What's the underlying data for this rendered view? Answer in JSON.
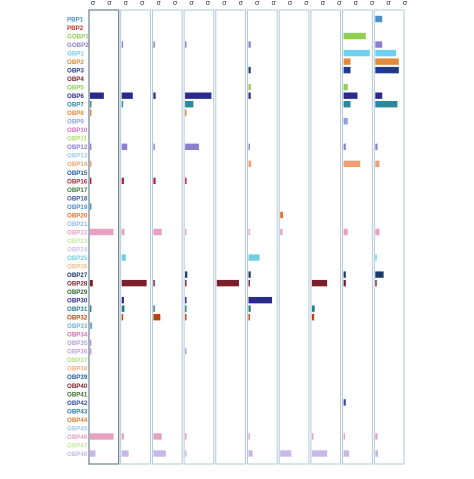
{
  "chart_data": {
    "type": "heatmap",
    "title": "",
    "xlabel": "",
    "ylabel": "",
    "columns": [
      "c1",
      "c2",
      "c3",
      "c4",
      "c5",
      "c6",
      "c7",
      "c8",
      "c9",
      "c10"
    ],
    "column_header_marks": [
      "σ",
      "σ",
      "σ",
      "σ",
      "σ",
      "σ",
      "σ",
      "σ",
      "σ",
      "σ",
      "σ",
      "σ",
      "σ",
      "σ",
      "σ",
      "σ",
      "σ",
      "σ",
      "σ",
      "σ"
    ],
    "genes": [
      "PBP1",
      "PBP2",
      "GOBP1",
      "GOBP2",
      "OBP1",
      "OBP2",
      "OBP3",
      "OBP4",
      "OBP5",
      "OBP6",
      "OBP7",
      "OBP8",
      "OBP9",
      "OBP10",
      "OBP11",
      "OBP12",
      "OBP13",
      "OBP14",
      "OBP15",
      "OBP16",
      "OBP17",
      "OBP18",
      "OBP19",
      "OBP20",
      "OBP21",
      "OBP22",
      "OBP23",
      "OBP24",
      "OBP25",
      "OBP26",
      "OBP27",
      "OBP28",
      "OBP29",
      "OBP30",
      "OBP31",
      "OBP32",
      "OBP33",
      "OBP34",
      "OBP35",
      "OBP36",
      "OBP37",
      "OBP38",
      "OBP39",
      "OBP40",
      "OBP41",
      "OBP42",
      "OBP43",
      "OBP44",
      "OBP45",
      "OBP46",
      "OBP47",
      "OBP48"
    ],
    "gene_colors": [
      "#4a90c8",
      "#c0392b",
      "#8fcf4f",
      "#8a7fd0",
      "#6fd0f0",
      "#e08a3a",
      "#1f3a8a",
      "#7a1f2a",
      "#8fcf4f",
      "#2a2a8a",
      "#2a8a9a",
      "#e08a3a",
      "#8fa0e0",
      "#d070c0",
      "#b0e070",
      "#8a7fd0",
      "#9ad0e8",
      "#f0a070",
      "#1a5a9a",
      "#b0203a",
      "#3a7a3a",
      "#3a5aa0",
      "#4a90c8",
      "#e07030",
      "#90b8e0",
      "#e8a0c0",
      "#c8e8a0",
      "#d0c0e8",
      "#70d0e0",
      "#f0c090",
      "#1a3a6a",
      "#7a1f2a",
      "#2a6a2a",
      "#2a2a8a",
      "#2a7a8a",
      "#c04010",
      "#70b0d8",
      "#d070b0",
      "#b0a0d0",
      "#c0a0e0",
      "#b0e080",
      "#f0b080",
      "#1a5a9a",
      "#7a1f2a",
      "#3a6a2a",
      "#3a4aa0",
      "#2a7aa0",
      "#e08030",
      "#a0c8e8",
      "#e8a0c0",
      "#c8e8a0",
      "#c8b8e8"
    ],
    "values": [
      [
        0,
        0,
        0,
        0,
        0,
        0,
        0,
        0,
        0,
        0.25
      ],
      [
        0,
        0,
        0,
        0,
        0,
        0,
        0,
        0,
        0,
        0
      ],
      [
        0,
        0,
        0,
        0,
        0,
        0,
        0,
        0,
        0.8,
        0
      ],
      [
        0,
        0.05,
        0.05,
        0.05,
        0,
        0.08,
        0,
        0,
        0,
        0.25
      ],
      [
        0,
        0,
        0,
        0,
        0,
        0,
        0,
        0,
        0.95,
        0.75
      ],
      [
        0,
        0,
        0,
        0,
        0,
        0,
        0,
        0,
        0.25,
        0.85
      ],
      [
        0,
        0,
        0,
        0,
        0,
        0.08,
        0,
        0,
        0.25,
        0.85
      ],
      [
        0,
        0,
        0,
        0,
        0,
        0,
        0,
        0,
        0,
        0
      ],
      [
        0,
        0,
        0,
        0,
        0,
        0.08,
        0,
        0,
        0.15,
        0
      ],
      [
        0.5,
        0.4,
        0.08,
        0.95,
        0,
        0.08,
        0,
        0,
        0.5,
        0.25
      ],
      [
        0.05,
        0.05,
        0,
        0.3,
        0,
        0,
        0,
        0,
        0.25,
        0.8
      ],
      [
        0.03,
        0,
        0,
        0.03,
        0,
        0,
        0,
        0,
        0,
        0
      ],
      [
        0,
        0,
        0,
        0,
        0,
        0,
        0,
        0,
        0.15,
        0
      ],
      [
        0,
        0,
        0,
        0,
        0,
        0,
        0,
        0,
        0,
        0
      ],
      [
        0,
        0,
        0,
        0,
        0,
        0,
        0,
        0,
        0,
        0
      ],
      [
        0.05,
        0.2,
        0.05,
        0.5,
        0,
        0.05,
        0,
        0,
        0.08,
        0.08
      ],
      [
        0,
        0,
        0,
        0,
        0,
        0,
        0,
        0,
        0,
        0
      ],
      [
        0.02,
        0,
        0,
        0,
        0,
        0.1,
        0,
        0,
        0.6,
        0.15
      ],
      [
        0,
        0,
        0,
        0,
        0,
        0,
        0,
        0,
        0,
        0
      ],
      [
        0.05,
        0.08,
        0.08,
        0.05,
        0,
        0,
        0,
        0,
        0,
        0
      ],
      [
        0,
        0,
        0,
        0,
        0,
        0,
        0,
        0,
        0,
        0
      ],
      [
        0,
        0,
        0,
        0,
        0,
        0,
        0,
        0,
        0,
        0
      ],
      [
        0.03,
        0,
        0,
        0,
        0,
        0,
        0,
        0,
        0,
        0
      ],
      [
        0,
        0,
        0,
        0,
        0,
        0,
        0.1,
        0,
        0,
        0
      ],
      [
        0,
        0,
        0,
        0,
        0,
        0,
        0,
        0,
        0,
        0
      ],
      [
        0.85,
        0.1,
        0.3,
        0.05,
        0,
        0.05,
        0.08,
        0,
        0.15,
        0.15
      ],
      [
        0,
        0,
        0,
        0,
        0,
        0,
        0,
        0,
        0,
        0
      ],
      [
        0,
        0,
        0,
        0,
        0,
        0,
        0,
        0,
        0,
        0
      ],
      [
        0,
        0.15,
        0,
        0,
        0,
        0.4,
        0,
        0,
        0,
        0.05
      ],
      [
        0,
        0,
        0,
        0,
        0,
        0,
        0,
        0,
        0,
        0
      ],
      [
        0,
        0,
        0,
        0.08,
        0,
        0.08,
        0,
        0,
        0.08,
        0.3
      ],
      [
        0.1,
        0.9,
        0.05,
        0.05,
        0.8,
        0.05,
        0,
        0.55,
        0.08,
        0.05
      ],
      [
        0,
        0,
        0,
        0,
        0,
        0,
        0,
        0,
        0,
        0
      ],
      [
        0,
        0.08,
        0,
        0.05,
        0,
        0.85,
        0,
        0,
        0,
        0
      ],
      [
        0.05,
        0.1,
        0.05,
        0.05,
        0,
        0.08,
        0,
        0.1,
        0,
        0
      ],
      [
        0,
        0.05,
        0.25,
        0.05,
        0,
        0.05,
        0,
        0.08,
        0,
        0
      ],
      [
        0.08,
        0,
        0,
        0,
        0,
        0,
        0,
        0,
        0,
        0
      ],
      [
        0,
        0,
        0,
        0,
        0,
        0,
        0,
        0,
        0,
        0
      ],
      [
        0.05,
        0,
        0,
        0,
        0,
        0,
        0,
        0,
        0,
        0
      ],
      [
        0.05,
        0,
        0,
        0.05,
        0,
        0,
        0,
        0,
        0,
        0
      ],
      [
        0,
        0,
        0,
        0,
        0,
        0,
        0,
        0,
        0,
        0
      ],
      [
        0,
        0,
        0,
        0,
        0,
        0,
        0,
        0,
        0,
        0
      ],
      [
        0,
        0,
        0,
        0,
        0,
        0,
        0,
        0,
        0,
        0
      ],
      [
        0,
        0,
        0,
        0,
        0,
        0,
        0,
        0,
        0,
        0
      ],
      [
        0,
        0,
        0,
        0,
        0,
        0,
        0,
        0,
        0,
        0
      ],
      [
        0,
        0,
        0,
        0,
        0,
        0,
        0,
        0,
        0.08,
        0
      ],
      [
        0,
        0,
        0,
        0,
        0,
        0,
        0,
        0,
        0,
        0
      ],
      [
        0,
        0,
        0,
        0,
        0,
        0,
        0,
        0,
        0,
        0
      ],
      [
        0,
        0,
        0,
        0,
        0,
        0,
        0,
        0,
        0,
        0
      ],
      [
        0.85,
        0.08,
        0.3,
        0.05,
        0,
        0.05,
        0,
        0.05,
        0.05,
        0.08
      ],
      [
        0,
        0,
        0,
        0,
        0,
        0,
        0,
        0,
        0,
        0
      ],
      [
        0.2,
        0.25,
        0.45,
        0.05,
        0,
        0.15,
        0.4,
        0.55,
        0.2,
        0.1
      ]
    ]
  }
}
